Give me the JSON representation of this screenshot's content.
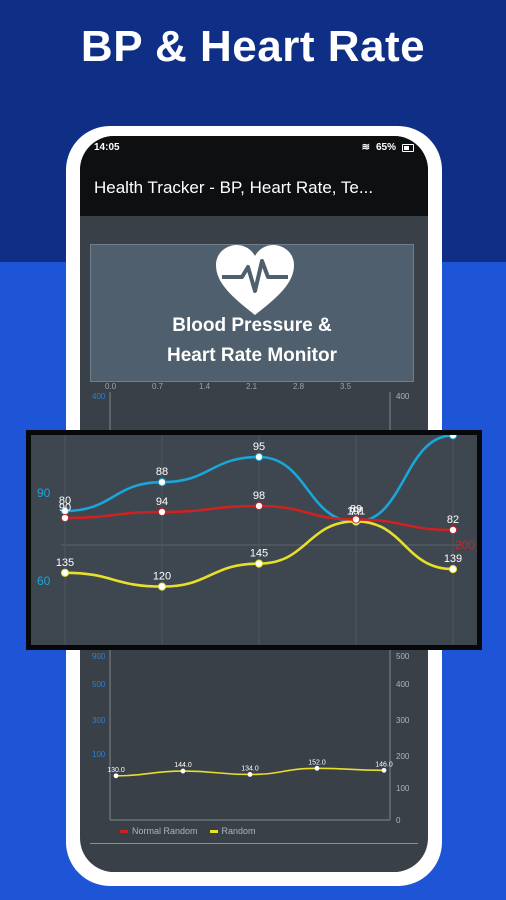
{
  "headline": "BP & Heart Rate",
  "statusbar": {
    "time": "14:05",
    "battery": "65%"
  },
  "app": {
    "title": "Health Tracker - BP, Heart Rate, Te..."
  },
  "hero": {
    "line1": "Blood Pressure &",
    "line2": "Heart Rate Monitor"
  },
  "top_axis_ticks": [
    "0.0",
    "0.7",
    "1.4",
    "2.1",
    "2.8",
    "3.5"
  ],
  "axis_labels": {
    "left_top": "400",
    "right_top": "400",
    "right_mid": "500",
    "right_mid2": "400",
    "left_mid": "900",
    "left_low": "500",
    "left_low2": "300",
    "left_low3": "100",
    "right_low1": "300",
    "right_low2": "200",
    "right_low3": "100",
    "right_low4": "0"
  },
  "legend": {
    "normal_random": "Normal Random",
    "random": "Random"
  },
  "colors": {
    "heart_rate": "#1aa6d8",
    "systolic": "#e8df2a",
    "diastolic": "#cc2222",
    "bg_dark": "#3e4650"
  },
  "chart_data": [
    {
      "type": "line",
      "title": "",
      "x": [
        0,
        1,
        2,
        3,
        4
      ],
      "series": [
        {
          "values": [
            80,
            88,
            95,
            77,
            101
          ]
        },
        {
          "values": [
            135,
            120,
            145,
            191,
            139
          ]
        },
        {
          "values": [
            90,
            94,
            98,
            89,
            82
          ]
        }
      ],
      "left_axis_ticks": [
        "90",
        "60"
      ],
      "right_axis_ticks": [
        "200"
      ]
    },
    {
      "type": "line",
      "x": [
        0,
        1,
        2,
        3,
        4
      ],
      "series": [
        {
          "name": "Random",
          "values": [
            130.0,
            144.0,
            134.0,
            152.0,
            146.0
          ]
        }
      ],
      "ylim": [
        0,
        600
      ]
    }
  ]
}
